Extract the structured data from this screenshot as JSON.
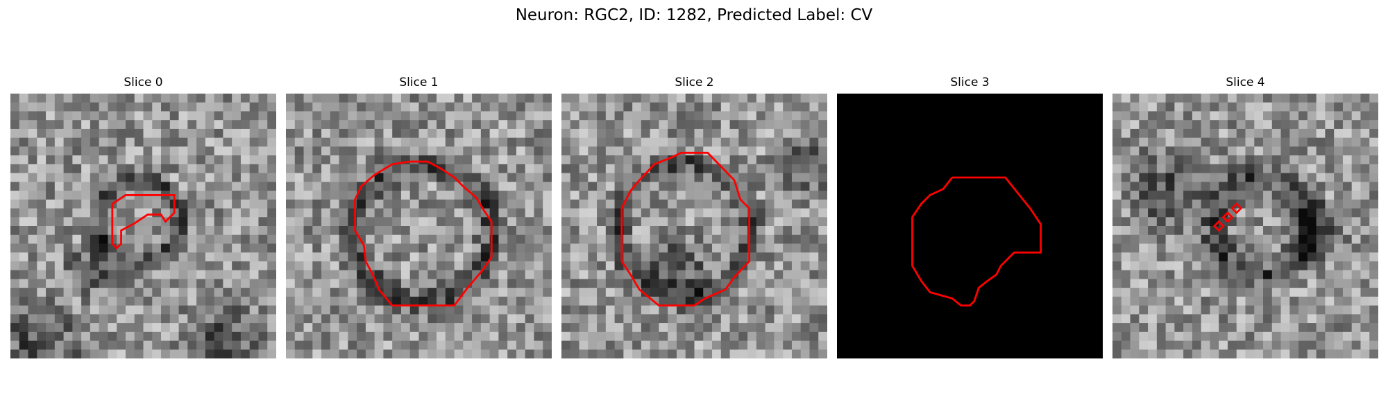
{
  "figure": {
    "title": "Neuron: RGC2, ID: 1282, Predicted Label: CV",
    "outline_color": "#ff0000"
  },
  "panels": [
    {
      "title": "Slice 0",
      "background": "noisy-grayscale"
    },
    {
      "title": "Slice 1",
      "background": "noisy-grayscale"
    },
    {
      "title": "Slice 2",
      "background": "noisy-grayscale"
    },
    {
      "title": "Slice 3",
      "background": "black"
    },
    {
      "title": "Slice 4",
      "background": "noisy-grayscale"
    }
  ]
}
